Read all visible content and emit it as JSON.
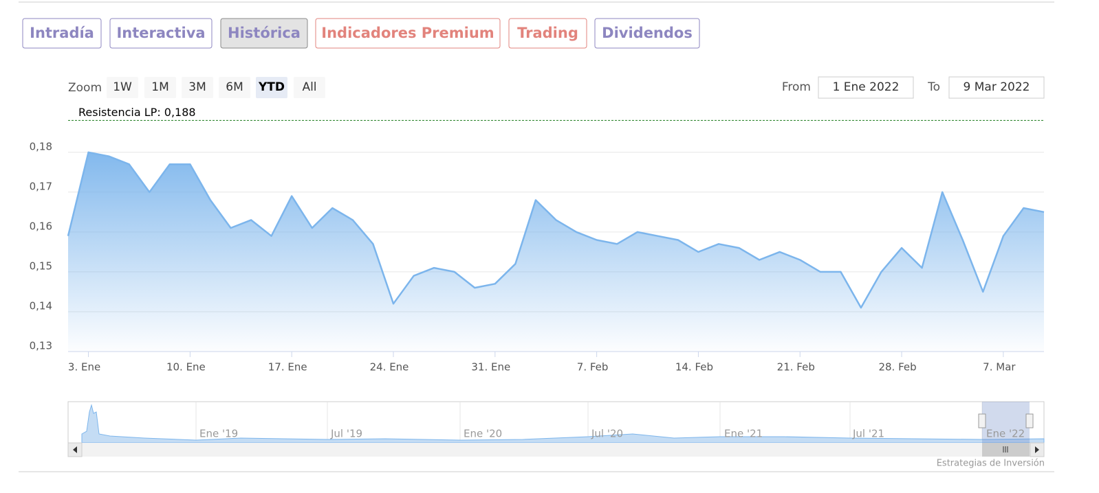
{
  "tabs": [
    "Intradía",
    "Interactiva",
    "Histórica",
    "Indicadores Premium",
    "Trading",
    "Dividendos"
  ],
  "zoom": {
    "label": "Zoom",
    "buttons": [
      "1W",
      "1M",
      "3M",
      "6M",
      "YTD",
      "All"
    ],
    "selected": "YTD"
  },
  "range": {
    "from_label": "From",
    "from": "1 Ene 2022",
    "to_label": "To",
    "to": "9 Mar 2022"
  },
  "navigator": {
    "labels": [
      "Ene '19",
      "Jul '19",
      "Ene '20",
      "Jul '20",
      "Ene '21",
      "Jul '21",
      "Ene '22"
    ]
  },
  "credits": "Estrategias de Inversión",
  "chart_data": {
    "type": "area",
    "color": "#7cb5ec",
    "categories": [
      null,
      "3. Ene",
      null,
      null,
      null,
      null,
      "10. Ene",
      null,
      null,
      null,
      null,
      "17. Ene",
      null,
      null,
      null,
      null,
      "24. Ene",
      null,
      null,
      null,
      null,
      "31. Ene",
      null,
      null,
      null,
      null,
      "7. Feb",
      null,
      null,
      null,
      null,
      "14. Feb",
      null,
      null,
      null,
      null,
      "21. Feb",
      null,
      null,
      null,
      null,
      "28. Feb",
      null,
      null,
      null,
      null,
      "7. Mar",
      null,
      null
    ],
    "values": [
      0.159,
      0.18,
      0.179,
      0.177,
      0.17,
      0.177,
      0.177,
      0.168,
      0.161,
      0.163,
      0.159,
      0.169,
      0.161,
      0.166,
      0.163,
      0.157,
      0.142,
      0.149,
      0.151,
      0.15,
      0.146,
      0.147,
      0.152,
      0.168,
      0.163,
      0.16,
      0.158,
      0.157,
      0.16,
      0.159,
      0.158,
      0.155,
      0.157,
      0.156,
      0.153,
      0.155,
      0.153,
      0.15,
      0.15,
      0.141,
      0.15,
      0.156,
      0.151,
      0.17,
      0.158,
      0.145,
      0.159,
      0.166,
      0.165
    ],
    "ylim": [
      0.13,
      0.1915
    ],
    "yticks": [
      {
        "value": 0.13,
        "label": "0,13"
      },
      {
        "value": 0.14,
        "label": "0,14"
      },
      {
        "value": 0.15,
        "label": "0,15"
      },
      {
        "value": 0.16,
        "label": "0,16"
      },
      {
        "value": 0.17,
        "label": "0,17"
      },
      {
        "value": 0.18,
        "label": "0,18"
      }
    ],
    "grid": true,
    "annotations": [
      {
        "label": "Resistencia LP: 0,188",
        "value": 0.188,
        "color": "#1a7a1a"
      }
    ]
  }
}
